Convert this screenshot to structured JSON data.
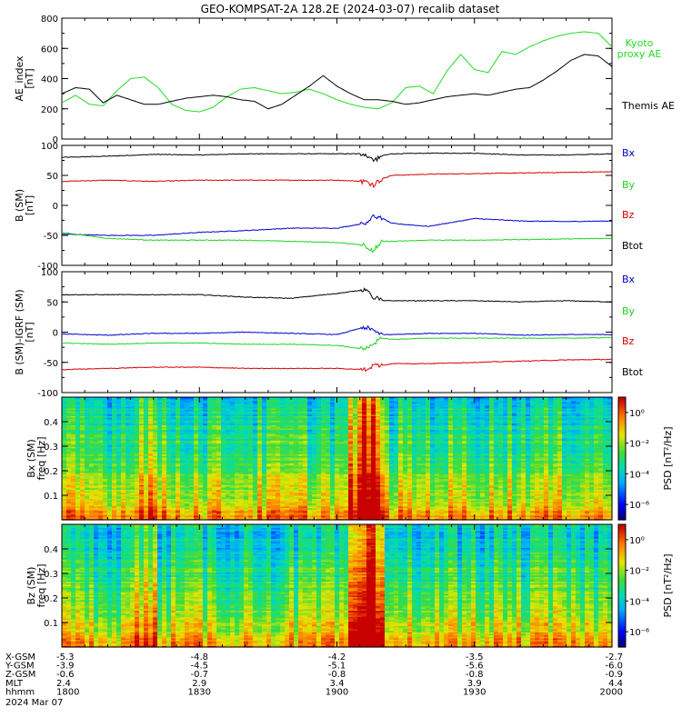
{
  "title": "GEO-KOMPSAT-2A 128.2E (2024-03-07) recalib dataset",
  "colors": {
    "black": "#000000",
    "red": "#d40000",
    "green": "#1fd21f",
    "blue": "#0000c8",
    "kyoto": "#22dd22"
  },
  "chart_data": [
    {
      "type": "line",
      "ylabel_lines": [
        "AE_index",
        "[nT]"
      ],
      "ylim": [
        0,
        800
      ],
      "yticks": [
        "0",
        "200",
        "400",
        "600",
        "800"
      ],
      "x_range_minutes": [
        0,
        120
      ],
      "series": [
        {
          "name": "Kyoto proxy AE",
          "label_lines": [
            "Kyoto",
            "proxy AE"
          ],
          "color": "#22dd22",
          "x": [
            0,
            3,
            6,
            9,
            12,
            15,
            18,
            21,
            24,
            27,
            30,
            33,
            36,
            39,
            42,
            45,
            48,
            51,
            54,
            57,
            60,
            63,
            66,
            69,
            72,
            75,
            78,
            81,
            84,
            87,
            90,
            93,
            96,
            99,
            102,
            105,
            108,
            111,
            114,
            117,
            120
          ],
          "y": [
            240,
            290,
            230,
            220,
            320,
            400,
            410,
            340,
            230,
            190,
            180,
            210,
            280,
            330,
            340,
            320,
            300,
            310,
            330,
            300,
            260,
            230,
            210,
            200,
            240,
            340,
            350,
            300,
            450,
            560,
            460,
            440,
            580,
            560,
            610,
            650,
            680,
            700,
            710,
            700,
            610
          ]
        },
        {
          "name": "Themis AE",
          "label_lines": [
            "Themis AE"
          ],
          "color": "#000000",
          "x": [
            0,
            3,
            6,
            9,
            12,
            15,
            18,
            21,
            24,
            27,
            30,
            33,
            36,
            39,
            42,
            45,
            48,
            51,
            54,
            57,
            60,
            63,
            66,
            69,
            72,
            75,
            78,
            81,
            84,
            87,
            90,
            93,
            96,
            99,
            102,
            105,
            108,
            111,
            114,
            117,
            120
          ],
          "y": [
            300,
            340,
            330,
            240,
            290,
            260,
            230,
            230,
            250,
            270,
            280,
            290,
            280,
            260,
            250,
            200,
            230,
            290,
            350,
            420,
            350,
            300,
            260,
            260,
            250,
            230,
            240,
            260,
            280,
            290,
            300,
            290,
            310,
            330,
            340,
            390,
            450,
            520,
            560,
            550,
            480
          ]
        }
      ]
    },
    {
      "type": "line",
      "ylabel_lines": [
        "B (SM)",
        "[nT]"
      ],
      "ylim": [
        -100,
        100
      ],
      "yticks": [
        "-100",
        "-50",
        "0",
        "50",
        "100"
      ],
      "x_range_minutes": [
        0,
        120
      ],
      "legend": [
        "Bx",
        "By",
        "Bz",
        "Btot"
      ],
      "legend_colors": [
        "#0000c8",
        "#1fd21f",
        "#d40000",
        "#000000"
      ],
      "series": [
        {
          "name": "Btot",
          "color": "#000000",
          "x": [
            0,
            10,
            20,
            30,
            40,
            50,
            60,
            66,
            68,
            70,
            72,
            80,
            90,
            100,
            110,
            120
          ],
          "y": [
            80,
            82,
            85,
            84,
            86,
            86,
            86,
            86,
            75,
            83,
            86,
            87,
            87,
            84,
            84,
            86
          ]
        },
        {
          "name": "Bz",
          "color": "#d40000",
          "x": [
            0,
            10,
            20,
            30,
            40,
            50,
            60,
            66,
            68,
            70,
            72,
            80,
            90,
            100,
            110,
            120
          ],
          "y": [
            40,
            42,
            40,
            42,
            42,
            42,
            42,
            40,
            35,
            45,
            50,
            52,
            53,
            54,
            55,
            56
          ]
        },
        {
          "name": "Bx",
          "color": "#0000c8",
          "x": [
            0,
            10,
            20,
            30,
            40,
            50,
            60,
            66,
            68,
            70,
            72,
            80,
            90,
            100,
            110,
            120
          ],
          "y": [
            -48,
            -50,
            -50,
            -45,
            -42,
            -38,
            -38,
            -30,
            -18,
            -22,
            -30,
            -35,
            -22,
            -26,
            -27,
            -26
          ]
        },
        {
          "name": "By",
          "color": "#1fd21f",
          "x": [
            0,
            10,
            20,
            30,
            40,
            50,
            60,
            66,
            68,
            70,
            72,
            80,
            90,
            100,
            110,
            120
          ],
          "y": [
            -45,
            -55,
            -58,
            -58,
            -58,
            -60,
            -62,
            -66,
            -75,
            -60,
            -60,
            -58,
            -58,
            -57,
            -56,
            -55
          ]
        }
      ]
    },
    {
      "type": "line",
      "ylabel_lines": [
        "B (SM)-IGRF (SM)",
        "[nT]"
      ],
      "ylim": [
        -100,
        100
      ],
      "yticks": [
        "-100",
        "-50",
        "0",
        "50",
        "100"
      ],
      "x_range_minutes": [
        0,
        120
      ],
      "legend": [
        "Bx",
        "By",
        "Bz",
        "Btot"
      ],
      "legend_colors": [
        "#0000c8",
        "#1fd21f",
        "#d40000",
        "#000000"
      ],
      "series": [
        {
          "name": "Btot",
          "color": "#000000",
          "x": [
            0,
            10,
            20,
            30,
            40,
            50,
            60,
            66,
            68,
            70,
            72,
            80,
            90,
            100,
            110,
            120
          ],
          "y": [
            62,
            62,
            62,
            62,
            58,
            56,
            64,
            70,
            58,
            52,
            52,
            52,
            52,
            50,
            52,
            50
          ]
        },
        {
          "name": "Bx",
          "color": "#0000c8",
          "x": [
            0,
            10,
            20,
            30,
            40,
            50,
            60,
            66,
            68,
            70,
            72,
            80,
            90,
            100,
            110,
            120
          ],
          "y": [
            -3,
            -5,
            -2,
            -2,
            0,
            -2,
            -4,
            8,
            2,
            -4,
            -4,
            -2,
            -2,
            -5,
            -4,
            -4
          ]
        },
        {
          "name": "By",
          "color": "#1fd21f",
          "x": [
            0,
            10,
            20,
            30,
            40,
            50,
            60,
            66,
            68,
            70,
            72,
            80,
            90,
            100,
            110,
            120
          ],
          "y": [
            -18,
            -20,
            -18,
            -18,
            -20,
            -20,
            -22,
            -28,
            -18,
            -10,
            -12,
            -10,
            -10,
            -10,
            -10,
            -9
          ]
        },
        {
          "name": "Bz",
          "color": "#d40000",
          "x": [
            0,
            10,
            20,
            30,
            40,
            50,
            60,
            66,
            68,
            70,
            72,
            80,
            90,
            100,
            110,
            120
          ],
          "y": [
            -62,
            -60,
            -58,
            -58,
            -60,
            -60,
            -60,
            -62,
            -55,
            -55,
            -52,
            -52,
            -50,
            -48,
            -46,
            -45
          ]
        }
      ]
    },
    {
      "type": "heatmap",
      "ylabel_lines": [
        "Bx (SM)",
        "freq [Hz]"
      ],
      "yticks": [
        "0.1",
        "0.2",
        "0.3",
        "0.4"
      ],
      "ytick_values": [
        0.1,
        0.2,
        0.3,
        0.4
      ],
      "ylim": [
        0,
        0.5
      ],
      "colorbar_label": "PSD [nT²/Hz]",
      "colorbar_ticks": [
        "10⁰",
        "10⁻²",
        "10⁻⁴",
        "10⁻⁶"
      ],
      "colorbar_tick_exponents": [
        0,
        -2,
        -4,
        -6
      ],
      "colorbar_range_exponents": [
        -7,
        1
      ]
    },
    {
      "type": "heatmap",
      "ylabel_lines": [
        "Bz (SM)",
        "freq [Hz]"
      ],
      "yticks": [
        "0.1",
        "0.2",
        "0.3",
        "0.4"
      ],
      "ytick_values": [
        0.1,
        0.2,
        0.3,
        0.4
      ],
      "ylim": [
        0,
        0.5
      ],
      "colorbar_label": "PSD [nT²/Hz]",
      "colorbar_ticks": [
        "10⁰",
        "10⁻²",
        "10⁻⁴",
        "10⁻⁶"
      ],
      "colorbar_tick_exponents": [
        0,
        -2,
        -4,
        -6
      ],
      "colorbar_range_exponents": [
        -7,
        1
      ]
    }
  ],
  "x_axis_table": {
    "rows": [
      {
        "label": "X-GSM",
        "values": [
          "-5.3",
          "-4.8",
          "-4.2",
          "-3.5",
          "-2.7"
        ]
      },
      {
        "label": "Y-GSM",
        "values": [
          "-3.9",
          "-4.5",
          "-5.1",
          "-5.6",
          "-6.0"
        ]
      },
      {
        "label": "Z-GSM",
        "values": [
          "-0.6",
          "-0.7",
          "-0.8",
          "-0.8",
          "-0.9"
        ]
      },
      {
        "label": "MLT",
        "values": [
          "2.4",
          "2.9",
          "3.4",
          "3.9",
          "4.4"
        ]
      },
      {
        "label": "hhmm",
        "values": [
          "1800",
          "1830",
          "1900",
          "1930",
          "2000"
        ]
      }
    ],
    "date": "2024 Mar 07",
    "tick_minutes": [
      0,
      30,
      60,
      90,
      120
    ]
  }
}
